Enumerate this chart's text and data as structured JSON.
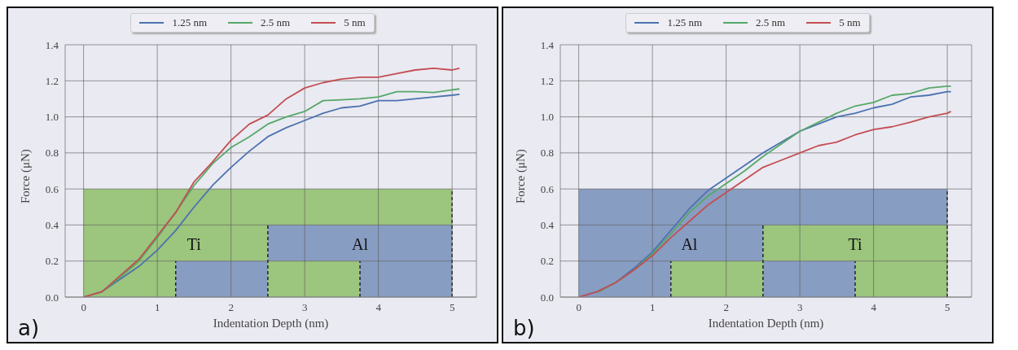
{
  "chart_data": [
    {
      "type": "line",
      "xlabel": "Indentation Depth (nm)",
      "ylabel": "Force (μN)",
      "annotations": [
        "a)",
        "Ti",
        "Al"
      ],
      "xlim": [
        -0.25,
        5.33
      ],
      "ylim": [
        0,
        1.4
      ],
      "xticks": [
        0,
        1,
        2,
        3,
        4,
        5
      ],
      "yticks": [
        {
          "value": 0,
          "label": "0.0"
        },
        {
          "value": 0.2,
          "label": "0.2"
        },
        {
          "value": 0.4,
          "label": "0.4"
        },
        {
          "value": 0.6,
          "label": "0.6"
        },
        {
          "value": 0.8,
          "label": "0.8"
        },
        {
          "value": 1,
          "label": "1.0"
        },
        {
          "value": 1.2,
          "label": "1.2"
        },
        {
          "value": 1.4,
          "label": "1.4"
        }
      ],
      "grid": true,
      "legend": "top",
      "marker": "none",
      "line_style": "solid",
      "x": [
        0,
        0.25,
        0.5,
        0.75,
        1,
        1.25,
        1.5,
        1.75,
        2,
        2.25,
        2.5,
        2.75,
        3,
        3.25,
        3.5,
        3.75,
        4,
        4.25,
        4.5,
        4.75,
        5,
        5.1
      ],
      "series": [
        {
          "name": "1.25 nm",
          "color": "#4c72b0",
          "values": [
            0,
            0.03,
            0.1,
            0.17,
            0.26,
            0.37,
            0.5,
            0.62,
            0.72,
            0.81,
            0.89,
            0.94,
            0.98,
            1.02,
            1.05,
            1.06,
            1.09,
            1.09,
            1.1,
            1.11,
            1.12,
            1.125
          ]
        },
        {
          "name": "2.5 nm",
          "color": "#55a868",
          "values": [
            0,
            0.03,
            0.11,
            0.2,
            0.33,
            0.47,
            0.62,
            0.74,
            0.83,
            0.89,
            0.96,
            1.0,
            1.03,
            1.09,
            1.095,
            1.1,
            1.11,
            1.14,
            1.14,
            1.135,
            1.15,
            1.155
          ]
        },
        {
          "name": "5 nm",
          "color": "#c44e52",
          "values": [
            0,
            0.03,
            0.12,
            0.21,
            0.34,
            0.47,
            0.64,
            0.75,
            0.87,
            0.96,
            1.01,
            1.1,
            1.16,
            1.19,
            1.21,
            1.22,
            1.22,
            1.24,
            1.26,
            1.27,
            1.26,
            1.27
          ]
        }
      ]
    },
    {
      "type": "line",
      "xlabel": "Indentation Depth (nm)",
      "ylabel": "Force (μN)",
      "annotations": [
        "b)",
        "Al",
        "Ti"
      ],
      "xlim": [
        -0.25,
        5.33
      ],
      "ylim": [
        0,
        1.4
      ],
      "xticks": [
        0,
        1,
        2,
        3,
        4,
        5
      ],
      "yticks": [
        {
          "value": 0,
          "label": "0.0"
        },
        {
          "value": 0.2,
          "label": "0.2"
        },
        {
          "value": 0.4,
          "label": "0.4"
        },
        {
          "value": 0.6,
          "label": "0.6"
        },
        {
          "value": 0.8,
          "label": "0.8"
        },
        {
          "value": 1,
          "label": "1.0"
        },
        {
          "value": 1.2,
          "label": "1.2"
        },
        {
          "value": 1.4,
          "label": "1.4"
        }
      ],
      "grid": true,
      "legend": "top",
      "marker": "none",
      "line_style": "solid",
      "x": [
        0,
        0.25,
        0.5,
        0.75,
        1,
        1.25,
        1.5,
        1.75,
        2,
        2.25,
        2.5,
        2.75,
        3,
        3.25,
        3.5,
        3.75,
        4,
        4.25,
        4.5,
        4.75,
        5,
        5.05
      ],
      "series": [
        {
          "name": "1.25 nm",
          "color": "#4c72b0",
          "values": [
            0,
            0.03,
            0.08,
            0.16,
            0.25,
            0.37,
            0.49,
            0.59,
            0.66,
            0.73,
            0.8,
            0.86,
            0.92,
            0.96,
            1.0,
            1.02,
            1.05,
            1.07,
            1.11,
            1.12,
            1.14,
            1.14
          ]
        },
        {
          "name": "2.5 nm",
          "color": "#55a868",
          "values": [
            null,
            0.025,
            0.08,
            0.15,
            0.24,
            0.35,
            0.47,
            0.56,
            0.63,
            0.7,
            0.78,
            0.85,
            0.92,
            0.97,
            1.02,
            1.06,
            1.08,
            1.12,
            1.13,
            1.16,
            1.17,
            1.17
          ]
        },
        {
          "name": "5 nm",
          "color": "#c44e52",
          "values": [
            0,
            0.03,
            0.08,
            0.15,
            0.23,
            0.33,
            0.42,
            0.51,
            0.58,
            0.65,
            0.72,
            0.76,
            0.8,
            0.84,
            0.86,
            0.9,
            0.93,
            0.945,
            0.97,
            1.0,
            1.02,
            1.03
          ]
        }
      ]
    }
  ]
}
